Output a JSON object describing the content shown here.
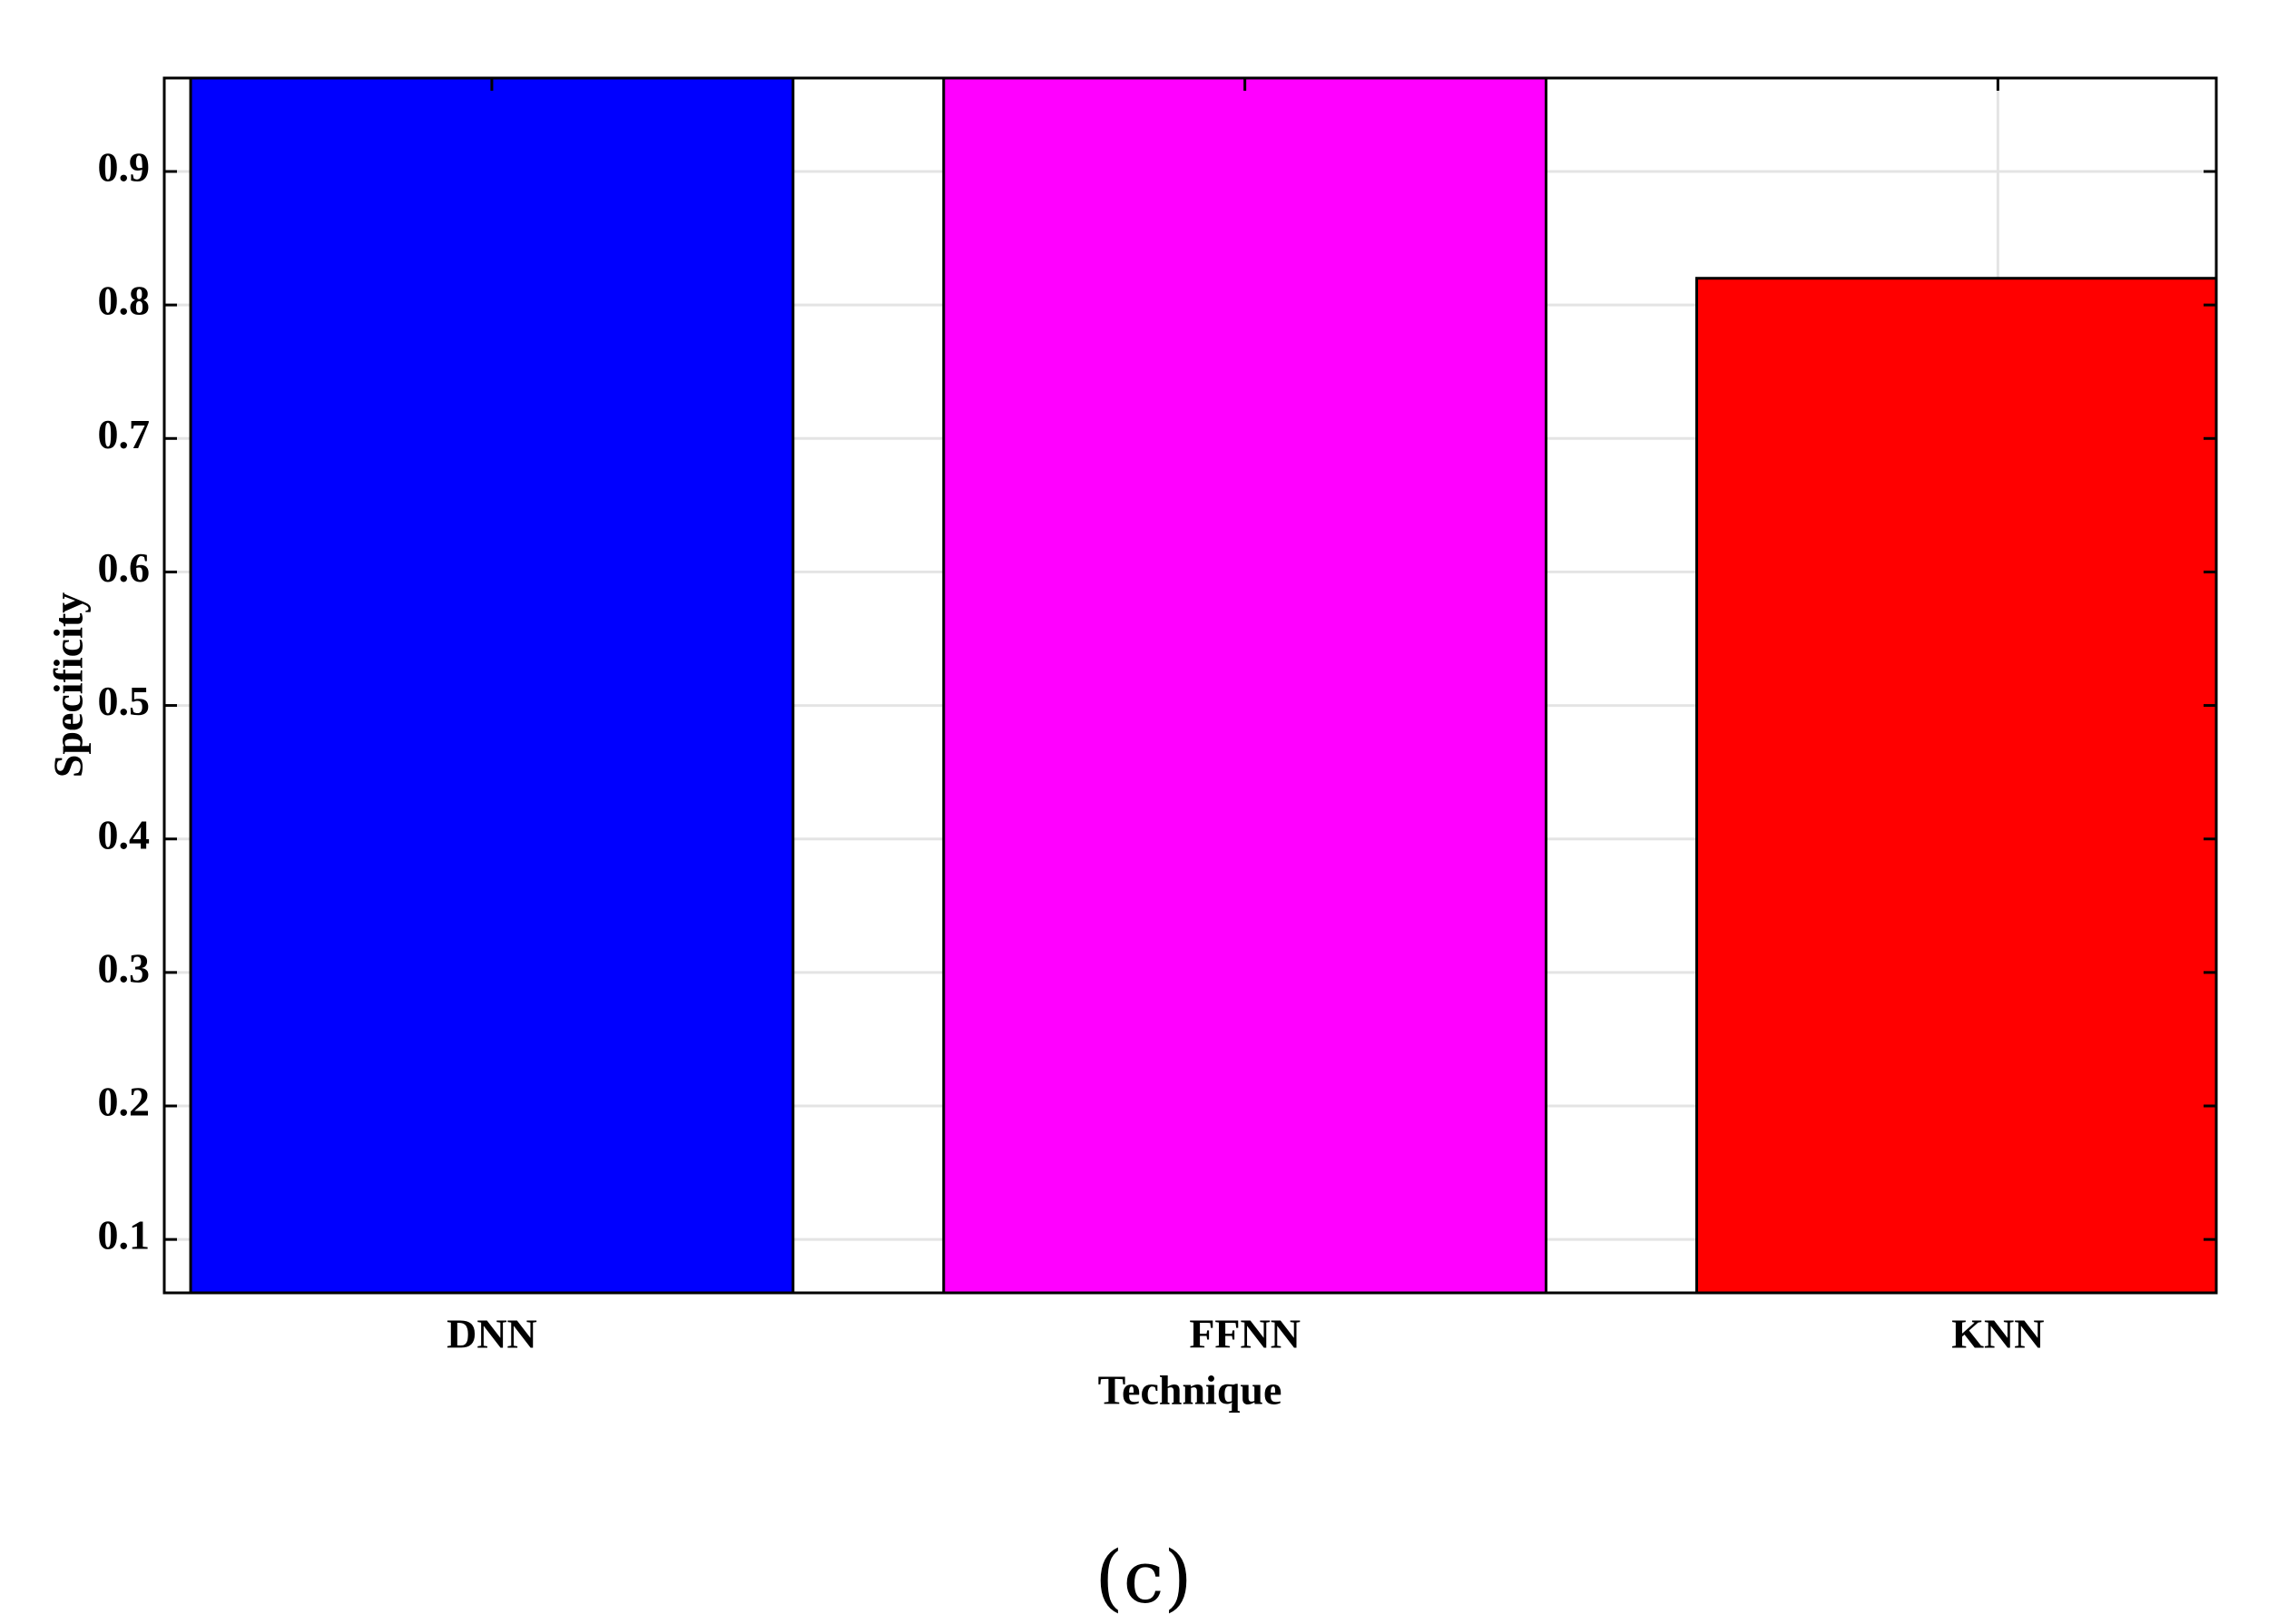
{
  "chart_data": {
    "type": "bar",
    "x_label": "Technique",
    "y_label": "Specificity",
    "caption": "(c)",
    "categories": [
      "DNN",
      "FFNN",
      "KNN"
    ],
    "values": [
      0.97,
      0.97,
      0.82
    ],
    "colors": [
      "#0000ff",
      "#ff00ff",
      "#ff0000"
    ],
    "ylim": [
      0.06,
      0.97
    ],
    "yticks": [
      0.1,
      0.2,
      0.3,
      0.4,
      0.5,
      0.6,
      0.7,
      0.8,
      0.9
    ],
    "grid": true
  }
}
